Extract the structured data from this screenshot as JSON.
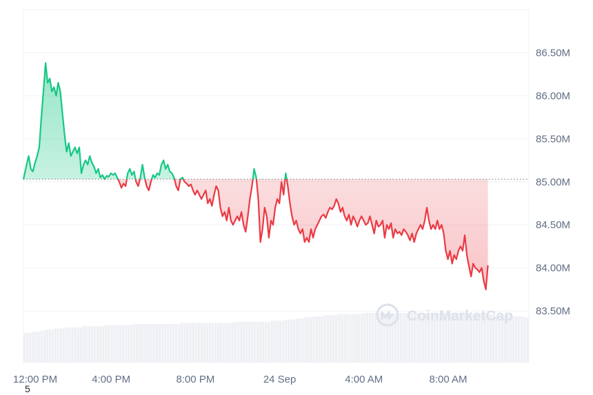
{
  "chart_data": {
    "type": "area",
    "title": "",
    "xlabel": "",
    "ylabel": "",
    "x_ticks": [
      "12:00 PM",
      "4:00 PM",
      "8:00 PM",
      "24 Sep",
      "4:00 AM",
      "8:00 AM"
    ],
    "y_ticks": [
      "83.50M",
      "84.00M",
      "84.50M",
      "85.00M",
      "85.50M",
      "86.00M",
      "86.50M"
    ],
    "y_tick_values": [
      83.5,
      84.0,
      84.5,
      85.0,
      85.5,
      86.0,
      86.5
    ],
    "ylim": [
      82.9,
      87.0
    ],
    "baseline": 85.03,
    "x_range_hours": [
      0,
      24
    ],
    "series": [
      {
        "values": [
          [
            0.0,
            85.03
          ],
          [
            0.15,
            85.2
          ],
          [
            0.25,
            85.3
          ],
          [
            0.35,
            85.15
          ],
          [
            0.45,
            85.12
          ],
          [
            0.55,
            85.22
          ],
          [
            0.65,
            85.3
          ],
          [
            0.75,
            85.4
          ],
          [
            0.85,
            85.75
          ],
          [
            0.95,
            86.05
          ],
          [
            1.05,
            86.38
          ],
          [
            1.15,
            86.15
          ],
          [
            1.25,
            86.2
          ],
          [
            1.35,
            86.05
          ],
          [
            1.45,
            86.1
          ],
          [
            1.55,
            86.0
          ],
          [
            1.65,
            86.15
          ],
          [
            1.75,
            86.05
          ],
          [
            1.85,
            85.8
          ],
          [
            1.95,
            85.55
          ],
          [
            2.05,
            85.35
          ],
          [
            2.15,
            85.45
          ],
          [
            2.25,
            85.3
          ],
          [
            2.35,
            85.35
          ],
          [
            2.45,
            85.4
          ],
          [
            2.55,
            85.33
          ],
          [
            2.65,
            85.4
          ],
          [
            2.75,
            85.1
          ],
          [
            2.85,
            85.2
          ],
          [
            2.95,
            85.25
          ],
          [
            3.05,
            85.2
          ],
          [
            3.15,
            85.3
          ],
          [
            3.25,
            85.22
          ],
          [
            3.35,
            85.18
          ],
          [
            3.45,
            85.1
          ],
          [
            3.55,
            85.15
          ],
          [
            3.65,
            85.05
          ],
          [
            3.75,
            85.08
          ],
          [
            3.85,
            85.03
          ],
          [
            3.95,
            85.07
          ],
          [
            4.05,
            85.06
          ],
          [
            4.15,
            85.1
          ],
          [
            4.25,
            85.08
          ],
          [
            4.35,
            85.1
          ],
          [
            4.45,
            85.05
          ],
          [
            4.55,
            85.0
          ],
          [
            4.65,
            84.93
          ],
          [
            4.75,
            84.98
          ],
          [
            4.85,
            84.95
          ],
          [
            4.95,
            85.1
          ],
          [
            5.05,
            85.15
          ],
          [
            5.15,
            85.08
          ],
          [
            5.25,
            85.12
          ],
          [
            5.35,
            85.0
          ],
          [
            5.45,
            84.95
          ],
          [
            5.55,
            85.05
          ],
          [
            5.65,
            85.2
          ],
          [
            5.75,
            85.05
          ],
          [
            5.85,
            84.95
          ],
          [
            5.95,
            84.9
          ],
          [
            6.05,
            85.0
          ],
          [
            6.15,
            85.08
          ],
          [
            6.25,
            85.05
          ],
          [
            6.35,
            85.1
          ],
          [
            6.45,
            85.08
          ],
          [
            6.55,
            85.2
          ],
          [
            6.65,
            85.25
          ],
          [
            6.75,
            85.15
          ],
          [
            6.85,
            85.2
          ],
          [
            6.95,
            85.12
          ],
          [
            7.05,
            85.1
          ],
          [
            7.15,
            85.05
          ],
          [
            7.25,
            84.95
          ],
          [
            7.35,
            84.9
          ],
          [
            7.45,
            85.03
          ],
          [
            7.55,
            85.05
          ],
          [
            7.65,
            85.0
          ],
          [
            7.75,
            84.98
          ],
          [
            7.85,
            84.95
          ],
          [
            7.95,
            84.97
          ],
          [
            8.05,
            84.9
          ],
          [
            8.15,
            84.85
          ],
          [
            8.25,
            84.9
          ],
          [
            8.35,
            84.85
          ],
          [
            8.45,
            84.8
          ],
          [
            8.55,
            84.85
          ],
          [
            8.65,
            84.9
          ],
          [
            8.75,
            84.75
          ],
          [
            8.85,
            84.8
          ],
          [
            8.95,
            84.72
          ],
          [
            9.05,
            84.85
          ],
          [
            9.15,
            84.95
          ],
          [
            9.25,
            84.9
          ],
          [
            9.35,
            84.7
          ],
          [
            9.45,
            84.6
          ],
          [
            9.55,
            84.65
          ],
          [
            9.65,
            84.55
          ],
          [
            9.75,
            84.7
          ],
          [
            9.85,
            84.55
          ],
          [
            9.95,
            84.5
          ],
          [
            10.05,
            84.55
          ],
          [
            10.15,
            84.6
          ],
          [
            10.25,
            84.55
          ],
          [
            10.35,
            84.65
          ],
          [
            10.45,
            84.5
          ],
          [
            10.55,
            84.42
          ],
          [
            10.65,
            84.6
          ],
          [
            10.75,
            84.8
          ],
          [
            10.85,
            84.95
          ],
          [
            10.95,
            85.15
          ],
          [
            11.05,
            85.05
          ],
          [
            11.15,
            84.8
          ],
          [
            11.25,
            84.3
          ],
          [
            11.35,
            84.45
          ],
          [
            11.45,
            84.7
          ],
          [
            11.55,
            84.6
          ],
          [
            11.65,
            84.35
          ],
          [
            11.75,
            84.55
          ],
          [
            11.85,
            84.5
          ],
          [
            11.95,
            84.7
          ],
          [
            12.05,
            84.8
          ],
          [
            12.15,
            84.75
          ],
          [
            12.25,
            85.0
          ],
          [
            12.35,
            84.85
          ],
          [
            12.45,
            85.1
          ],
          [
            12.55,
            84.95
          ],
          [
            12.65,
            84.75
          ],
          [
            12.75,
            84.6
          ],
          [
            12.85,
            84.5
          ],
          [
            12.95,
            84.55
          ],
          [
            13.05,
            84.45
          ],
          [
            13.15,
            84.4
          ],
          [
            13.25,
            84.45
          ],
          [
            13.35,
            84.3
          ],
          [
            13.45,
            84.35
          ],
          [
            13.55,
            84.3
          ],
          [
            13.65,
            84.45
          ],
          [
            13.75,
            84.35
          ],
          [
            13.85,
            84.45
          ],
          [
            13.95,
            84.5
          ],
          [
            14.05,
            84.55
          ],
          [
            14.15,
            84.6
          ],
          [
            14.25,
            84.62
          ],
          [
            14.35,
            84.58
          ],
          [
            14.45,
            84.65
          ],
          [
            14.55,
            84.7
          ],
          [
            14.65,
            84.68
          ],
          [
            14.75,
            84.72
          ],
          [
            14.85,
            84.8
          ],
          [
            14.95,
            84.75
          ],
          [
            15.05,
            84.65
          ],
          [
            15.15,
            84.7
          ],
          [
            15.25,
            84.6
          ],
          [
            15.35,
            84.55
          ],
          [
            15.45,
            84.62
          ],
          [
            15.55,
            84.5
          ],
          [
            15.65,
            84.6
          ],
          [
            15.75,
            84.55
          ],
          [
            15.85,
            84.48
          ],
          [
            15.95,
            84.55
          ],
          [
            16.05,
            84.6
          ],
          [
            16.15,
            84.55
          ],
          [
            16.25,
            84.5
          ],
          [
            16.35,
            84.52
          ],
          [
            16.45,
            84.6
          ],
          [
            16.55,
            84.5
          ],
          [
            16.65,
            84.4
          ],
          [
            16.75,
            84.55
          ],
          [
            16.85,
            84.48
          ],
          [
            16.95,
            84.5
          ],
          [
            17.05,
            84.55
          ],
          [
            17.15,
            84.35
          ],
          [
            17.25,
            84.5
          ],
          [
            17.35,
            84.45
          ],
          [
            17.45,
            84.52
          ],
          [
            17.55,
            84.35
          ],
          [
            17.65,
            84.45
          ],
          [
            17.75,
            84.4
          ],
          [
            17.85,
            84.42
          ],
          [
            17.95,
            84.38
          ],
          [
            18.05,
            84.45
          ],
          [
            18.15,
            84.42
          ],
          [
            18.25,
            84.38
          ],
          [
            18.35,
            84.32
          ],
          [
            18.45,
            84.4
          ],
          [
            18.55,
            84.3
          ],
          [
            18.65,
            84.4
          ],
          [
            18.75,
            84.45
          ],
          [
            18.85,
            84.5
          ],
          [
            18.95,
            84.45
          ],
          [
            19.05,
            84.55
          ],
          [
            19.15,
            84.7
          ],
          [
            19.25,
            84.55
          ],
          [
            19.35,
            84.45
          ],
          [
            19.45,
            84.5
          ],
          [
            19.55,
            84.45
          ],
          [
            19.65,
            84.55
          ],
          [
            19.75,
            84.45
          ],
          [
            19.85,
            84.5
          ],
          [
            19.95,
            84.4
          ],
          [
            20.05,
            84.2
          ],
          [
            20.15,
            84.1
          ],
          [
            20.25,
            84.2
          ],
          [
            20.35,
            84.05
          ],
          [
            20.45,
            84.15
          ],
          [
            20.55,
            84.1
          ],
          [
            20.65,
            84.2
          ],
          [
            20.75,
            84.25
          ],
          [
            20.85,
            84.2
          ],
          [
            20.95,
            84.38
          ],
          [
            21.05,
            84.15
          ],
          [
            21.15,
            84.02
          ],
          [
            21.25,
            83.9
          ],
          [
            21.35,
            84.05
          ],
          [
            21.45,
            84.0
          ],
          [
            21.55,
            83.98
          ],
          [
            21.65,
            83.95
          ],
          [
            21.75,
            84.0
          ],
          [
            21.85,
            83.85
          ],
          [
            21.95,
            83.75
          ],
          [
            22.05,
            84.03
          ]
        ]
      }
    ],
    "volume_bars": [
      0.27,
      0.27,
      0.27,
      0.28,
      0.28,
      0.28,
      0.29,
      0.29,
      0.3,
      0.3,
      0.3,
      0.31,
      0.31,
      0.31,
      0.31,
      0.32,
      0.32,
      0.32,
      0.32,
      0.32,
      0.32,
      0.33,
      0.33,
      0.33,
      0.33,
      0.33,
      0.33,
      0.33,
      0.33,
      0.34,
      0.34,
      0.34,
      0.34,
      0.34,
      0.34,
      0.34,
      0.34,
      0.34,
      0.34,
      0.35,
      0.35,
      0.35,
      0.35,
      0.35,
      0.35,
      0.35,
      0.35,
      0.35,
      0.35,
      0.35,
      0.35,
      0.35,
      0.35,
      0.35,
      0.35,
      0.35,
      0.36,
      0.36,
      0.36,
      0.36,
      0.36,
      0.36,
      0.36,
      0.36,
      0.36,
      0.36,
      0.36,
      0.36,
      0.36,
      0.36,
      0.36,
      0.36,
      0.36,
      0.36,
      0.36,
      0.37,
      0.37,
      0.37,
      0.37,
      0.37,
      0.37,
      0.37,
      0.37,
      0.37,
      0.37,
      0.37,
      0.37,
      0.37,
      0.38,
      0.38,
      0.38,
      0.38,
      0.38,
      0.39,
      0.39,
      0.39,
      0.39,
      0.4,
      0.4,
      0.4,
      0.41,
      0.41,
      0.41,
      0.42,
      0.42,
      0.42,
      0.42,
      0.43,
      0.43,
      0.43,
      0.43,
      0.43,
      0.44,
      0.44,
      0.44,
      0.44,
      0.44,
      0.44,
      0.44,
      0.44,
      0.44,
      0.45,
      0.45,
      0.45,
      0.45,
      0.45,
      0.45,
      0.45,
      0.45,
      0.45,
      0.45,
      0.45,
      0.45,
      0.45,
      0.45,
      0.45,
      0.45,
      0.45,
      0.45,
      0.45,
      0.45,
      0.45,
      0.45,
      0.45,
      0.45,
      0.45,
      0.45,
      0.45,
      0.45,
      0.45,
      0.45,
      0.45,
      0.45,
      0.45,
      0.45,
      0.45,
      0.45,
      0.45,
      0.45,
      0.45,
      0.44,
      0.44,
      0.44,
      0.44,
      0.44,
      0.44,
      0.44,
      0.44,
      0.43,
      0.43,
      0.43,
      0.43,
      0.43,
      0.43,
      0.42,
      0.42,
      0.42,
      0.42,
      0.41,
      0.41
    ],
    "grid": true,
    "legend": "none",
    "colors": {
      "up": "#16c784",
      "down": "#ea3943",
      "grid": "#eff2f5",
      "baseline": "#888888"
    }
  },
  "watermark": {
    "brand": "CoinMarketCap",
    "icon": "coinmarketcap-logo-icon"
  },
  "footnote": "5"
}
